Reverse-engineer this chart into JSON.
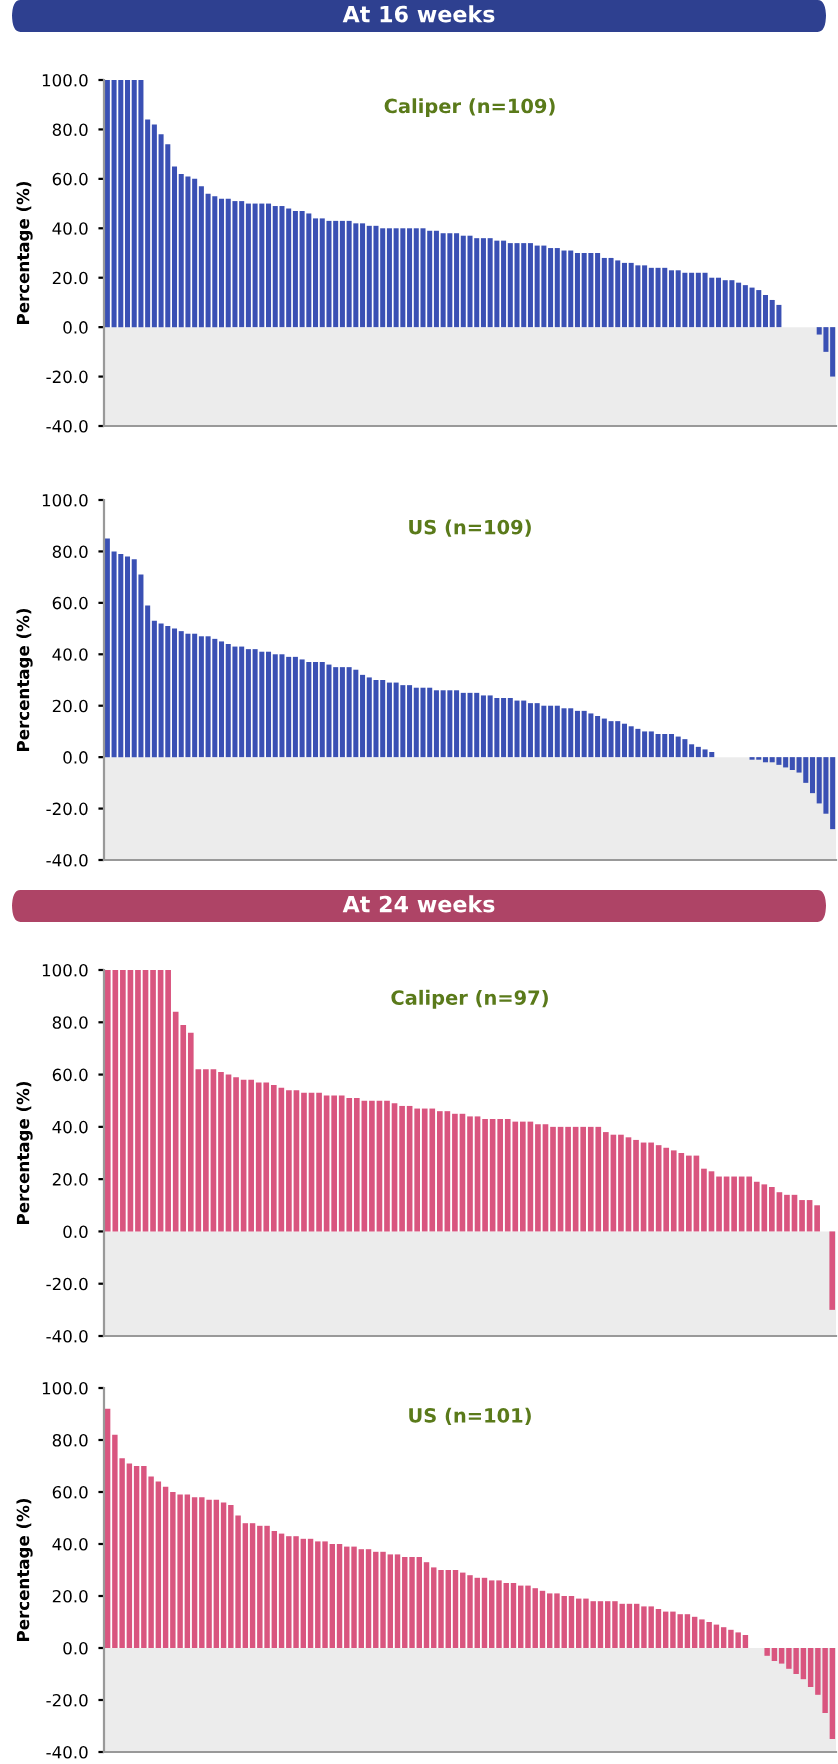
{
  "chart_data": [
    {
      "type": "bar",
      "title": "Caliper (n=109)",
      "ylabel": "Percentage (%)",
      "annotations": [
        "At 16 weeks"
      ],
      "tick_labels": "y",
      "categories": [
        null,
        null,
        null,
        null,
        null,
        null,
        null,
        null,
        null,
        null,
        null,
        null,
        null,
        null,
        null,
        null,
        null,
        null,
        null,
        null,
        null,
        null,
        null,
        null,
        null,
        null,
        null,
        null,
        null,
        null,
        null,
        null,
        null,
        null,
        null,
        null,
        null,
        null,
        null,
        null,
        null,
        null,
        null,
        null,
        null,
        null,
        null,
        null,
        null,
        null,
        null,
        null,
        null,
        null,
        null,
        null,
        null,
        null,
        null,
        null,
        null,
        null,
        null,
        null,
        null,
        null,
        null,
        null,
        null,
        null,
        null,
        null,
        null,
        null,
        null,
        null,
        null,
        null,
        null,
        null,
        null,
        null,
        null,
        null,
        null,
        null,
        null,
        null,
        null,
        null,
        null,
        null,
        null,
        null,
        null,
        null,
        null,
        null,
        null,
        null,
        null,
        null,
        null,
        null,
        null,
        null,
        null,
        null,
        null
      ],
      "series": [
        {
          "color": "#3a50b4",
          "values": [
            100,
            100,
            100,
            100,
            100,
            100,
            84,
            82,
            78,
            74,
            65,
            62,
            61,
            60,
            57,
            54,
            53,
            52,
            52,
            51,
            51,
            50,
            50,
            50,
            50,
            49,
            49,
            48,
            47,
            47,
            46,
            44,
            44,
            43,
            43,
            43,
            43,
            42,
            42,
            41,
            41,
            40,
            40,
            40,
            40,
            40,
            40,
            40,
            39,
            39,
            38,
            38,
            38,
            37,
            37,
            36,
            36,
            36,
            35,
            35,
            34,
            34,
            34,
            34,
            33,
            33,
            32,
            32,
            31,
            31,
            30,
            30,
            30,
            30,
            28,
            28,
            27,
            26,
            26,
            25,
            25,
            24,
            24,
            24,
            23,
            23,
            22,
            22,
            22,
            22,
            20,
            20,
            19,
            19,
            18,
            17,
            16,
            15,
            13,
            11,
            9,
            0,
            0,
            0,
            0,
            0,
            -3,
            -10,
            -20
          ]
        }
      ],
      "ylim": [
        -40,
        100
      ],
      "yticks": [
        {
          "value": -40,
          "label": "-40.0"
        },
        {
          "value": -20,
          "label": "-20.0"
        },
        {
          "value": 0,
          "label": "0.0"
        },
        {
          "value": 20,
          "label": "20.0"
        },
        {
          "value": 40,
          "label": "40.0"
        },
        {
          "value": 60,
          "label": "60.0"
        },
        {
          "value": 80,
          "label": "80.0"
        },
        {
          "value": 100,
          "label": "100.0"
        }
      ],
      "bands": [
        {
          "axis": "y",
          "from": -40,
          "to": 0,
          "color": "#ececec"
        }
      ]
    },
    {
      "type": "bar",
      "title": "US (n=109)",
      "ylabel": "Percentage (%)",
      "tick_labels": "y",
      "categories": [
        null,
        null,
        null,
        null,
        null,
        null,
        null,
        null,
        null,
        null,
        null,
        null,
        null,
        null,
        null,
        null,
        null,
        null,
        null,
        null,
        null,
        null,
        null,
        null,
        null,
        null,
        null,
        null,
        null,
        null,
        null,
        null,
        null,
        null,
        null,
        null,
        null,
        null,
        null,
        null,
        null,
        null,
        null,
        null,
        null,
        null,
        null,
        null,
        null,
        null,
        null,
        null,
        null,
        null,
        null,
        null,
        null,
        null,
        null,
        null,
        null,
        null,
        null,
        null,
        null,
        null,
        null,
        null,
        null,
        null,
        null,
        null,
        null,
        null,
        null,
        null,
        null,
        null,
        null,
        null,
        null,
        null,
        null,
        null,
        null,
        null,
        null,
        null,
        null,
        null,
        null,
        null,
        null,
        null,
        null,
        null,
        null,
        null,
        null,
        null,
        null,
        null,
        null,
        null,
        null,
        null,
        null,
        null,
        null
      ],
      "series": [
        {
          "color": "#3a50b4",
          "values": [
            85,
            80,
            79,
            78,
            77,
            71,
            59,
            53,
            52,
            51,
            50,
            49,
            48,
            48,
            47,
            47,
            46,
            45,
            44,
            43,
            43,
            42,
            42,
            41,
            41,
            40,
            40,
            39,
            39,
            38,
            37,
            37,
            37,
            36,
            35,
            35,
            35,
            34,
            32,
            31,
            30,
            30,
            29,
            29,
            28,
            28,
            27,
            27,
            27,
            26,
            26,
            26,
            26,
            25,
            25,
            25,
            24,
            24,
            23,
            23,
            23,
            22,
            22,
            21,
            21,
            20,
            20,
            20,
            19,
            19,
            18,
            18,
            17,
            16,
            15,
            14,
            14,
            13,
            12,
            11,
            10,
            10,
            9,
            9,
            9,
            8,
            7,
            5,
            4,
            3,
            2,
            0,
            0,
            0,
            0,
            0,
            -1,
            -1,
            -2,
            -2,
            -3,
            -4,
            -5,
            -6,
            -10,
            -14,
            -18,
            -22,
            -28
          ]
        }
      ],
      "ylim": [
        -40,
        100
      ],
      "yticks": [
        {
          "value": -40,
          "label": "-40.0"
        },
        {
          "value": -20,
          "label": "-20.0"
        },
        {
          "value": 0,
          "label": "0.0"
        },
        {
          "value": 20,
          "label": "20.0"
        },
        {
          "value": 40,
          "label": "40.0"
        },
        {
          "value": 60,
          "label": "60.0"
        },
        {
          "value": 80,
          "label": "80.0"
        },
        {
          "value": 100,
          "label": "100.0"
        }
      ],
      "bands": [
        {
          "axis": "y",
          "from": -40,
          "to": 0,
          "color": "#ececec"
        }
      ]
    },
    {
      "type": "bar",
      "title": "Caliper (n=97)",
      "ylabel": "Percentage (%)",
      "annotations": [
        "At 24 weeks"
      ],
      "tick_labels": "y",
      "categories": [
        null,
        null,
        null,
        null,
        null,
        null,
        null,
        null,
        null,
        null,
        null,
        null,
        null,
        null,
        null,
        null,
        null,
        null,
        null,
        null,
        null,
        null,
        null,
        null,
        null,
        null,
        null,
        null,
        null,
        null,
        null,
        null,
        null,
        null,
        null,
        null,
        null,
        null,
        null,
        null,
        null,
        null,
        null,
        null,
        null,
        null,
        null,
        null,
        null,
        null,
        null,
        null,
        null,
        null,
        null,
        null,
        null,
        null,
        null,
        null,
        null,
        null,
        null,
        null,
        null,
        null,
        null,
        null,
        null,
        null,
        null,
        null,
        null,
        null,
        null,
        null,
        null,
        null,
        null,
        null,
        null,
        null,
        null,
        null,
        null,
        null,
        null,
        null,
        null,
        null,
        null,
        null,
        null,
        null,
        null,
        null,
        null
      ],
      "series": [
        {
          "color": "#d9557f",
          "values": [
            100,
            100,
            100,
            100,
            100,
            100,
            100,
            100,
            100,
            84,
            79,
            76,
            62,
            62,
            62,
            61,
            60,
            59,
            58,
            58,
            57,
            57,
            56,
            55,
            54,
            54,
            53,
            53,
            53,
            52,
            52,
            52,
            51,
            51,
            50,
            50,
            50,
            50,
            49,
            48,
            48,
            47,
            47,
            47,
            46,
            46,
            45,
            45,
            44,
            44,
            43,
            43,
            43,
            43,
            42,
            42,
            42,
            41,
            41,
            40,
            40,
            40,
            40,
            40,
            40,
            40,
            38,
            37,
            37,
            36,
            35,
            34,
            34,
            33,
            32,
            31,
            30,
            29,
            29,
            24,
            23,
            21,
            21,
            21,
            21,
            21,
            19,
            18,
            17,
            15,
            14,
            14,
            12,
            12,
            10,
            0,
            -30
          ]
        }
      ],
      "ylim": [
        -40,
        100
      ],
      "yticks": [
        {
          "value": -40,
          "label": "-40.0"
        },
        {
          "value": -20,
          "label": "-20.0"
        },
        {
          "value": 0,
          "label": "0.0"
        },
        {
          "value": 20,
          "label": "20.0"
        },
        {
          "value": 40,
          "label": "40.0"
        },
        {
          "value": 60,
          "label": "60.0"
        },
        {
          "value": 80,
          "label": "80.0"
        },
        {
          "value": 100,
          "label": "100.0"
        }
      ],
      "bands": [
        {
          "axis": "y",
          "from": -40,
          "to": 0,
          "color": "#ececec"
        }
      ]
    },
    {
      "type": "bar",
      "title": "US (n=101)",
      "ylabel": "Percentage (%)",
      "tick_labels": "y",
      "categories": [
        null,
        null,
        null,
        null,
        null,
        null,
        null,
        null,
        null,
        null,
        null,
        null,
        null,
        null,
        null,
        null,
        null,
        null,
        null,
        null,
        null,
        null,
        null,
        null,
        null,
        null,
        null,
        null,
        null,
        null,
        null,
        null,
        null,
        null,
        null,
        null,
        null,
        null,
        null,
        null,
        null,
        null,
        null,
        null,
        null,
        null,
        null,
        null,
        null,
        null,
        null,
        null,
        null,
        null,
        null,
        null,
        null,
        null,
        null,
        null,
        null,
        null,
        null,
        null,
        null,
        null,
        null,
        null,
        null,
        null,
        null,
        null,
        null,
        null,
        null,
        null,
        null,
        null,
        null,
        null,
        null,
        null,
        null,
        null,
        null,
        null,
        null,
        null,
        null,
        null,
        null,
        null,
        null,
        null,
        null,
        null,
        null,
        null,
        null,
        null,
        null
      ],
      "series": [
        {
          "color": "#d9557f",
          "values": [
            92,
            82,
            73,
            71,
            70,
            70,
            66,
            64,
            62,
            60,
            59,
            59,
            58,
            58,
            57,
            57,
            56,
            55,
            51,
            48,
            48,
            47,
            47,
            45,
            44,
            43,
            43,
            42,
            42,
            41,
            41,
            40,
            40,
            39,
            39,
            38,
            38,
            37,
            37,
            36,
            36,
            35,
            35,
            35,
            33,
            31,
            30,
            30,
            30,
            29,
            28,
            27,
            27,
            26,
            26,
            25,
            25,
            24,
            24,
            23,
            22,
            21,
            21,
            20,
            20,
            19,
            19,
            18,
            18,
            18,
            18,
            17,
            17,
            17,
            16,
            16,
            15,
            14,
            14,
            13,
            13,
            12,
            11,
            10,
            9,
            8,
            7,
            6,
            5,
            0,
            0,
            -3,
            -5,
            -6,
            -8,
            -10,
            -12,
            -15,
            -18,
            -25,
            -35
          ]
        }
      ],
      "ylim": [
        -40,
        100
      ],
      "yticks": [
        {
          "value": -40,
          "label": "-40.0"
        },
        {
          "value": -20,
          "label": "-20.0"
        },
        {
          "value": 0,
          "label": "0.0"
        },
        {
          "value": 20,
          "label": "20.0"
        },
        {
          "value": 40,
          "label": "40.0"
        },
        {
          "value": 60,
          "label": "60.0"
        },
        {
          "value": 80,
          "label": "80.0"
        },
        {
          "value": 100,
          "label": "100.0"
        }
      ],
      "bands": [
        {
          "axis": "y",
          "from": -40,
          "to": 0,
          "color": "#ececec"
        }
      ]
    }
  ]
}
